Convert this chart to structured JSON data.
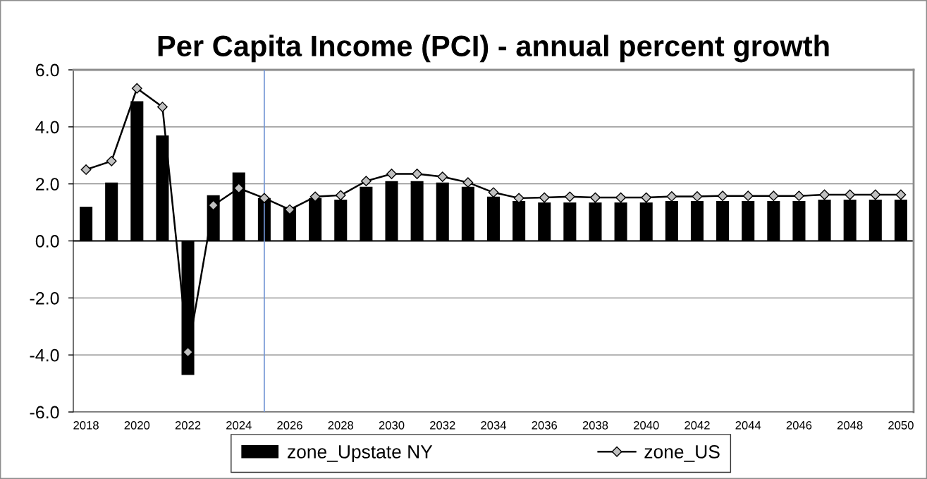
{
  "chart_data": {
    "type": "bar",
    "title": "Per Capita Income (PCI) - annual percent growth",
    "x": [
      2018,
      2019,
      2020,
      2021,
      2022,
      2023,
      2024,
      2025,
      2026,
      2027,
      2028,
      2029,
      2030,
      2031,
      2032,
      2033,
      2034,
      2035,
      2036,
      2037,
      2038,
      2039,
      2040,
      2041,
      2042,
      2043,
      2044,
      2045,
      2046,
      2047,
      2048,
      2049,
      2050
    ],
    "xlim": [
      2017.5,
      2050.5
    ],
    "xticks": [
      2018,
      2020,
      2022,
      2024,
      2026,
      2028,
      2030,
      2032,
      2034,
      2036,
      2038,
      2040,
      2042,
      2044,
      2046,
      2048,
      2050
    ],
    "ylim": [
      -6,
      6
    ],
    "yticks": [
      {
        "value": -6,
        "label": "-6.0"
      },
      {
        "value": -4,
        "label": "-4.0"
      },
      {
        "value": -2,
        "label": "-2.0"
      },
      {
        "value": 0,
        "label": "0.0"
      },
      {
        "value": 2,
        "label": "2.0"
      },
      {
        "value": 4,
        "label": "4.0"
      },
      {
        "value": 6,
        "label": "6.0"
      }
    ],
    "grid": "y",
    "legend": "bottom",
    "series": [
      {
        "name": "zone_Upstate NY",
        "color": "#000000",
        "values": [
          1.2,
          2.05,
          4.9,
          3.7,
          -4.7,
          1.6,
          2.4,
          1.5,
          1.2,
          1.5,
          1.45,
          1.9,
          2.1,
          2.1,
          2.05,
          1.9,
          1.55,
          1.4,
          1.35,
          1.35,
          1.35,
          1.35,
          1.35,
          1.4,
          1.4,
          1.4,
          1.4,
          1.4,
          1.4,
          1.45,
          1.45,
          1.45,
          1.45
        ]
      },
      {
        "name": "zone_US",
        "type": "line",
        "color": "#000000",
        "marker": "diamond",
        "line_style": "solid",
        "values": [
          2.5,
          2.8,
          5.35,
          4.7,
          -3.9,
          1.25,
          1.85,
          1.5,
          1.1,
          1.55,
          1.6,
          2.1,
          2.35,
          2.35,
          2.25,
          2.05,
          1.7,
          1.5,
          1.52,
          1.55,
          1.52,
          1.52,
          1.52,
          1.56,
          1.56,
          1.58,
          1.58,
          1.58,
          1.58,
          1.62,
          1.62,
          1.62,
          1.62
        ]
      }
    ],
    "ref_lines": [
      {
        "axis": "x",
        "value": 2025,
        "color": "#7094d4"
      }
    ]
  }
}
